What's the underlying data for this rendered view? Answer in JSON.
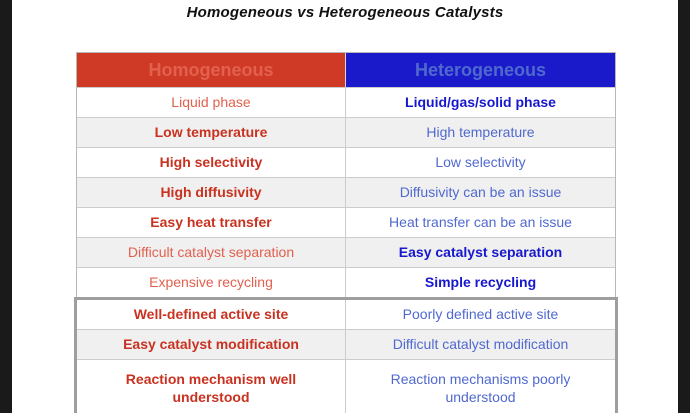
{
  "title": "Homogeneous vs Heterogeneous Catalysts",
  "colors": {
    "header_left_bg": "#cf3a27",
    "header_right_bg": "#1a1aca",
    "header_text": "#ffffff",
    "red_bold_text": "#c93220",
    "red_light_text": "#e2604d",
    "blue_bold_text": "#1717cd",
    "blue_light_text": "#5069cf",
    "alt_row_bg": "#f0f0f0",
    "highlight_border": "#9e9e9e",
    "letterbox": "#1a1a1a"
  },
  "table": {
    "headers": {
      "left": "Homogeneous",
      "right": "Heterogeneous"
    },
    "rows": [
      {
        "left": {
          "text": "Liquid phase",
          "bold": false
        },
        "right": {
          "text": "Liquid/gas/solid phase",
          "bold": true
        }
      },
      {
        "left": {
          "text": "Low temperature",
          "bold": true
        },
        "right": {
          "text": "High temperature",
          "bold": false
        }
      },
      {
        "left": {
          "text": "High selectivity",
          "bold": true
        },
        "right": {
          "text": "Low selectivity",
          "bold": false
        }
      },
      {
        "left": {
          "text": "High diffusivity",
          "bold": true
        },
        "right": {
          "text": "Diffusivity can be an issue",
          "bold": false
        }
      },
      {
        "left": {
          "text": "Easy heat transfer",
          "bold": true
        },
        "right": {
          "text": "Heat transfer can be an issue",
          "bold": false
        }
      },
      {
        "left": {
          "text": "Difficult catalyst separation",
          "bold": false
        },
        "right": {
          "text": "Easy catalyst separation",
          "bold": true
        }
      },
      {
        "left": {
          "text": "Expensive recycling",
          "bold": false
        },
        "right": {
          "text": "Simple recycling",
          "bold": true
        }
      },
      {
        "left": {
          "text": "Well-defined active site",
          "bold": true
        },
        "right": {
          "text": "Poorly defined active site",
          "bold": false
        }
      },
      {
        "left": {
          "text": "Easy catalyst modification",
          "bold": true
        },
        "right": {
          "text": "Difficult catalyst modification",
          "bold": false
        }
      },
      {
        "left": {
          "text": "Reaction mechanism well understood",
          "bold": true
        },
        "right": {
          "text": "Reaction mechanisms poorly understood",
          "bold": false
        }
      }
    ]
  }
}
